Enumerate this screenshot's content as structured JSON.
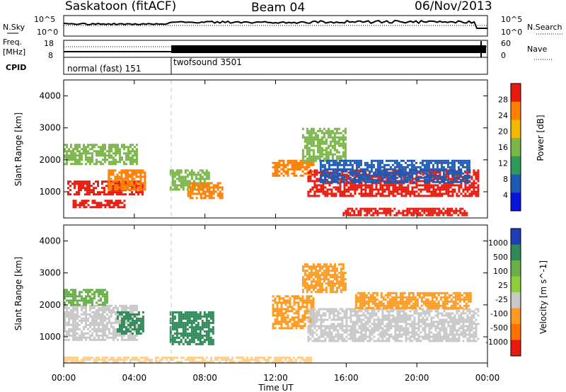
{
  "header": {
    "station": "Saskatoon (fitACF)",
    "beam": "Beam 04",
    "date": "06/Nov/2013"
  },
  "panels": {
    "nsky_label": "N.Sky",
    "nsearch_label": "N.Search",
    "nsky_ticks": [
      "10^5",
      "10^0"
    ],
    "nsearch_ticks": [
      "10^5",
      "10^0"
    ],
    "freq_label": "Freq.",
    "freq_unit": "[MHz]",
    "freq_ticks": [
      "18",
      "8"
    ],
    "nave_label": "Nave",
    "nave_ticks": [
      "60",
      "0"
    ],
    "cpid_label": "CPID",
    "cpid_modes": [
      "normal (fast) 151",
      "twofsound 3501"
    ]
  },
  "chart_data": [
    {
      "type": "heatmap",
      "name": "power",
      "ylabel": "Slant Range [km]",
      "xlabel": "Time UT",
      "ylim": [
        180,
        4500
      ],
      "yticks": [
        "4000",
        "3000",
        "2000",
        "1000"
      ],
      "xticks": [
        "00:00",
        "04:00",
        "08:00",
        "12:00",
        "16:00",
        "20:00",
        "00:00"
      ],
      "colorbar": {
        "label": "Power [dB]",
        "ticks": [
          "28",
          "24",
          "20",
          "16",
          "12",
          "8",
          "4"
        ],
        "colors": [
          "#e8190d",
          "#ff7f00",
          "#f5b800",
          "#7ab648",
          "#2e9a5a",
          "#1e5ab4",
          "#0a14d8"
        ]
      },
      "regions": [
        {
          "t0": 0.0,
          "t1": 4.2,
          "r0": 1900,
          "r1": 2500,
          "color": "#7ab648"
        },
        {
          "t0": 0.2,
          "t1": 4.5,
          "r0": 950,
          "r1": 1350,
          "color": "#e8190d"
        },
        {
          "t0": 0.5,
          "t1": 3.5,
          "r0": 500,
          "r1": 750,
          "color": "#e8190d"
        },
        {
          "t0": 2.5,
          "t1": 4.6,
          "r0": 1100,
          "r1": 1700,
          "color": "#ff7f00"
        },
        {
          "t0": 6.0,
          "t1": 8.2,
          "r0": 1100,
          "r1": 1700,
          "color": "#7ab648"
        },
        {
          "t0": 7.0,
          "t1": 9.0,
          "r0": 800,
          "r1": 1300,
          "color": "#ff7f00"
        },
        {
          "t0": 11.8,
          "t1": 14.2,
          "r0": 1500,
          "r1": 2000,
          "color": "#ff7f00"
        },
        {
          "t0": 13.5,
          "t1": 16.0,
          "r0": 2000,
          "r1": 3000,
          "color": "#7ab648"
        },
        {
          "t0": 13.8,
          "t1": 23.5,
          "r0": 900,
          "r1": 1700,
          "color": "#e8190d"
        },
        {
          "t0": 14.5,
          "t1": 23.0,
          "r0": 1300,
          "r1": 2000,
          "color": "#1e5ab4"
        },
        {
          "t0": 15.8,
          "t1": 22.8,
          "r0": 300,
          "r1": 500,
          "color": "#e8190d"
        }
      ]
    },
    {
      "type": "heatmap",
      "name": "velocity",
      "ylabel": "Slant Range [km]",
      "xlabel": "Time UT",
      "ylim": [
        180,
        4500
      ],
      "yticks": [
        "4000",
        "3000",
        "2000",
        "1000"
      ],
      "xticks": [
        "00:00",
        "04:00",
        "08:00",
        "12:00",
        "16:00",
        "20:00",
        "00:00"
      ],
      "colorbar": {
        "label": "Velocity [m s^-1]",
        "ticks": [
          "1000",
          "500",
          "100",
          "25",
          "-25",
          "-100",
          "-500",
          "-1000"
        ],
        "colors": [
          "#1e3cb4",
          "#2e8a58",
          "#6ab04a",
          "#8ccf3a",
          "#c8c8c8",
          "#ff9a20",
          "#ff7000",
          "#e81a0d"
        ]
      },
      "regions": [
        {
          "t0": 0.0,
          "t1": 4.2,
          "r0": 900,
          "r1": 2000,
          "color": "#c8c8c8"
        },
        {
          "t0": 0.0,
          "t1": 2.5,
          "r0": 2000,
          "r1": 2500,
          "color": "#6ab04a"
        },
        {
          "t0": 3.0,
          "t1": 4.5,
          "r0": 1100,
          "r1": 1800,
          "color": "#2e8a58"
        },
        {
          "t0": 6.0,
          "t1": 8.5,
          "r0": 800,
          "r1": 1800,
          "color": "#2e8a58"
        },
        {
          "t0": 11.8,
          "t1": 14.2,
          "r0": 1300,
          "r1": 2300,
          "color": "#ff9a20"
        },
        {
          "t0": 13.5,
          "t1": 16.0,
          "r0": 2400,
          "r1": 3300,
          "color": "#ff9a20"
        },
        {
          "t0": 13.8,
          "t1": 23.5,
          "r0": 900,
          "r1": 1900,
          "color": "#c8c8c8"
        },
        {
          "t0": 16.5,
          "t1": 23.0,
          "r0": 1900,
          "r1": 2400,
          "color": "#ff9a20"
        },
        {
          "t0": 0.0,
          "t1": 14.0,
          "r0": 200,
          "r1": 380,
          "color": "#ffd090"
        }
      ]
    }
  ]
}
